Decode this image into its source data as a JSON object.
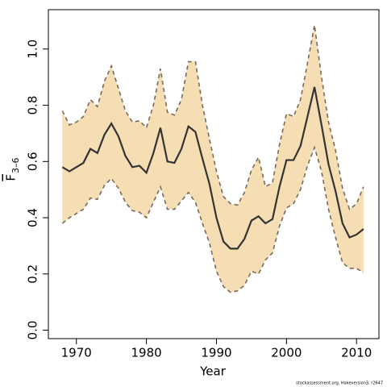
{
  "chart_data": {
    "type": "line",
    "xlabel": "Year",
    "ylabel": "F",
    "ylabel_sub": "3–6",
    "footnote": "stockassessment.org, Hakeversion3, r2647",
    "x": [
      1968,
      1969,
      1970,
      1971,
      1972,
      1973,
      1974,
      1975,
      1976,
      1977,
      1978,
      1979,
      1980,
      1981,
      1982,
      1983,
      1984,
      1985,
      1986,
      1987,
      1988,
      1989,
      1990,
      1991,
      1992,
      1993,
      1994,
      1995,
      1996,
      1997,
      1998,
      1999,
      2000,
      2001,
      2002,
      2003,
      2004,
      2005,
      2006,
      2007,
      2008,
      2009,
      2010,
      2011
    ],
    "series": [
      {
        "color": "#333333",
        "values": [
          0.58,
          0.565,
          0.58,
          0.595,
          0.645,
          0.63,
          0.695,
          0.735,
          0.69,
          0.62,
          0.58,
          0.585,
          0.56,
          0.63,
          0.72,
          0.6,
          0.595,
          0.645,
          0.725,
          0.705,
          0.61,
          0.52,
          0.4,
          0.315,
          0.29,
          0.29,
          0.325,
          0.39,
          0.405,
          0.38,
          0.395,
          0.51,
          0.605,
          0.605,
          0.655,
          0.76,
          0.865,
          0.73,
          0.59,
          0.495,
          0.38,
          0.33,
          0.34,
          0.36
        ]
      }
    ],
    "band": {
      "color": "#f5deb3",
      "edge_color": "#7a6a5a",
      "upper": [
        0.78,
        0.73,
        0.74,
        0.76,
        0.82,
        0.795,
        0.885,
        0.94,
        0.86,
        0.78,
        0.74,
        0.745,
        0.72,
        0.8,
        0.93,
        0.775,
        0.765,
        0.82,
        0.955,
        0.955,
        0.8,
        0.68,
        0.565,
        0.475,
        0.45,
        0.445,
        0.49,
        0.57,
        0.615,
        0.51,
        0.525,
        0.66,
        0.77,
        0.76,
        0.82,
        0.95,
        1.085,
        0.9,
        0.74,
        0.64,
        0.505,
        0.43,
        0.45,
        0.51
      ],
      "lower": [
        0.38,
        0.4,
        0.415,
        0.43,
        0.47,
        0.465,
        0.515,
        0.54,
        0.505,
        0.455,
        0.425,
        0.42,
        0.4,
        0.455,
        0.51,
        0.43,
        0.43,
        0.46,
        0.49,
        0.455,
        0.38,
        0.31,
        0.21,
        0.155,
        0.135,
        0.14,
        0.16,
        0.21,
        0.2,
        0.25,
        0.275,
        0.37,
        0.435,
        0.45,
        0.5,
        0.585,
        0.65,
        0.565,
        0.43,
        0.33,
        0.24,
        0.22,
        0.22,
        0.205
      ]
    },
    "xlim": [
      1966,
      2013.2
    ],
    "ylim": [
      -0.03,
      1.14
    ],
    "xticks": [
      1970,
      1980,
      1990,
      2000,
      2010
    ],
    "yticks": [
      {
        "value": 0,
        "label": "0.0"
      },
      0.2,
      0.4,
      0.6,
      0.8,
      {
        "value": 1,
        "label": "1.0"
      }
    ]
  }
}
